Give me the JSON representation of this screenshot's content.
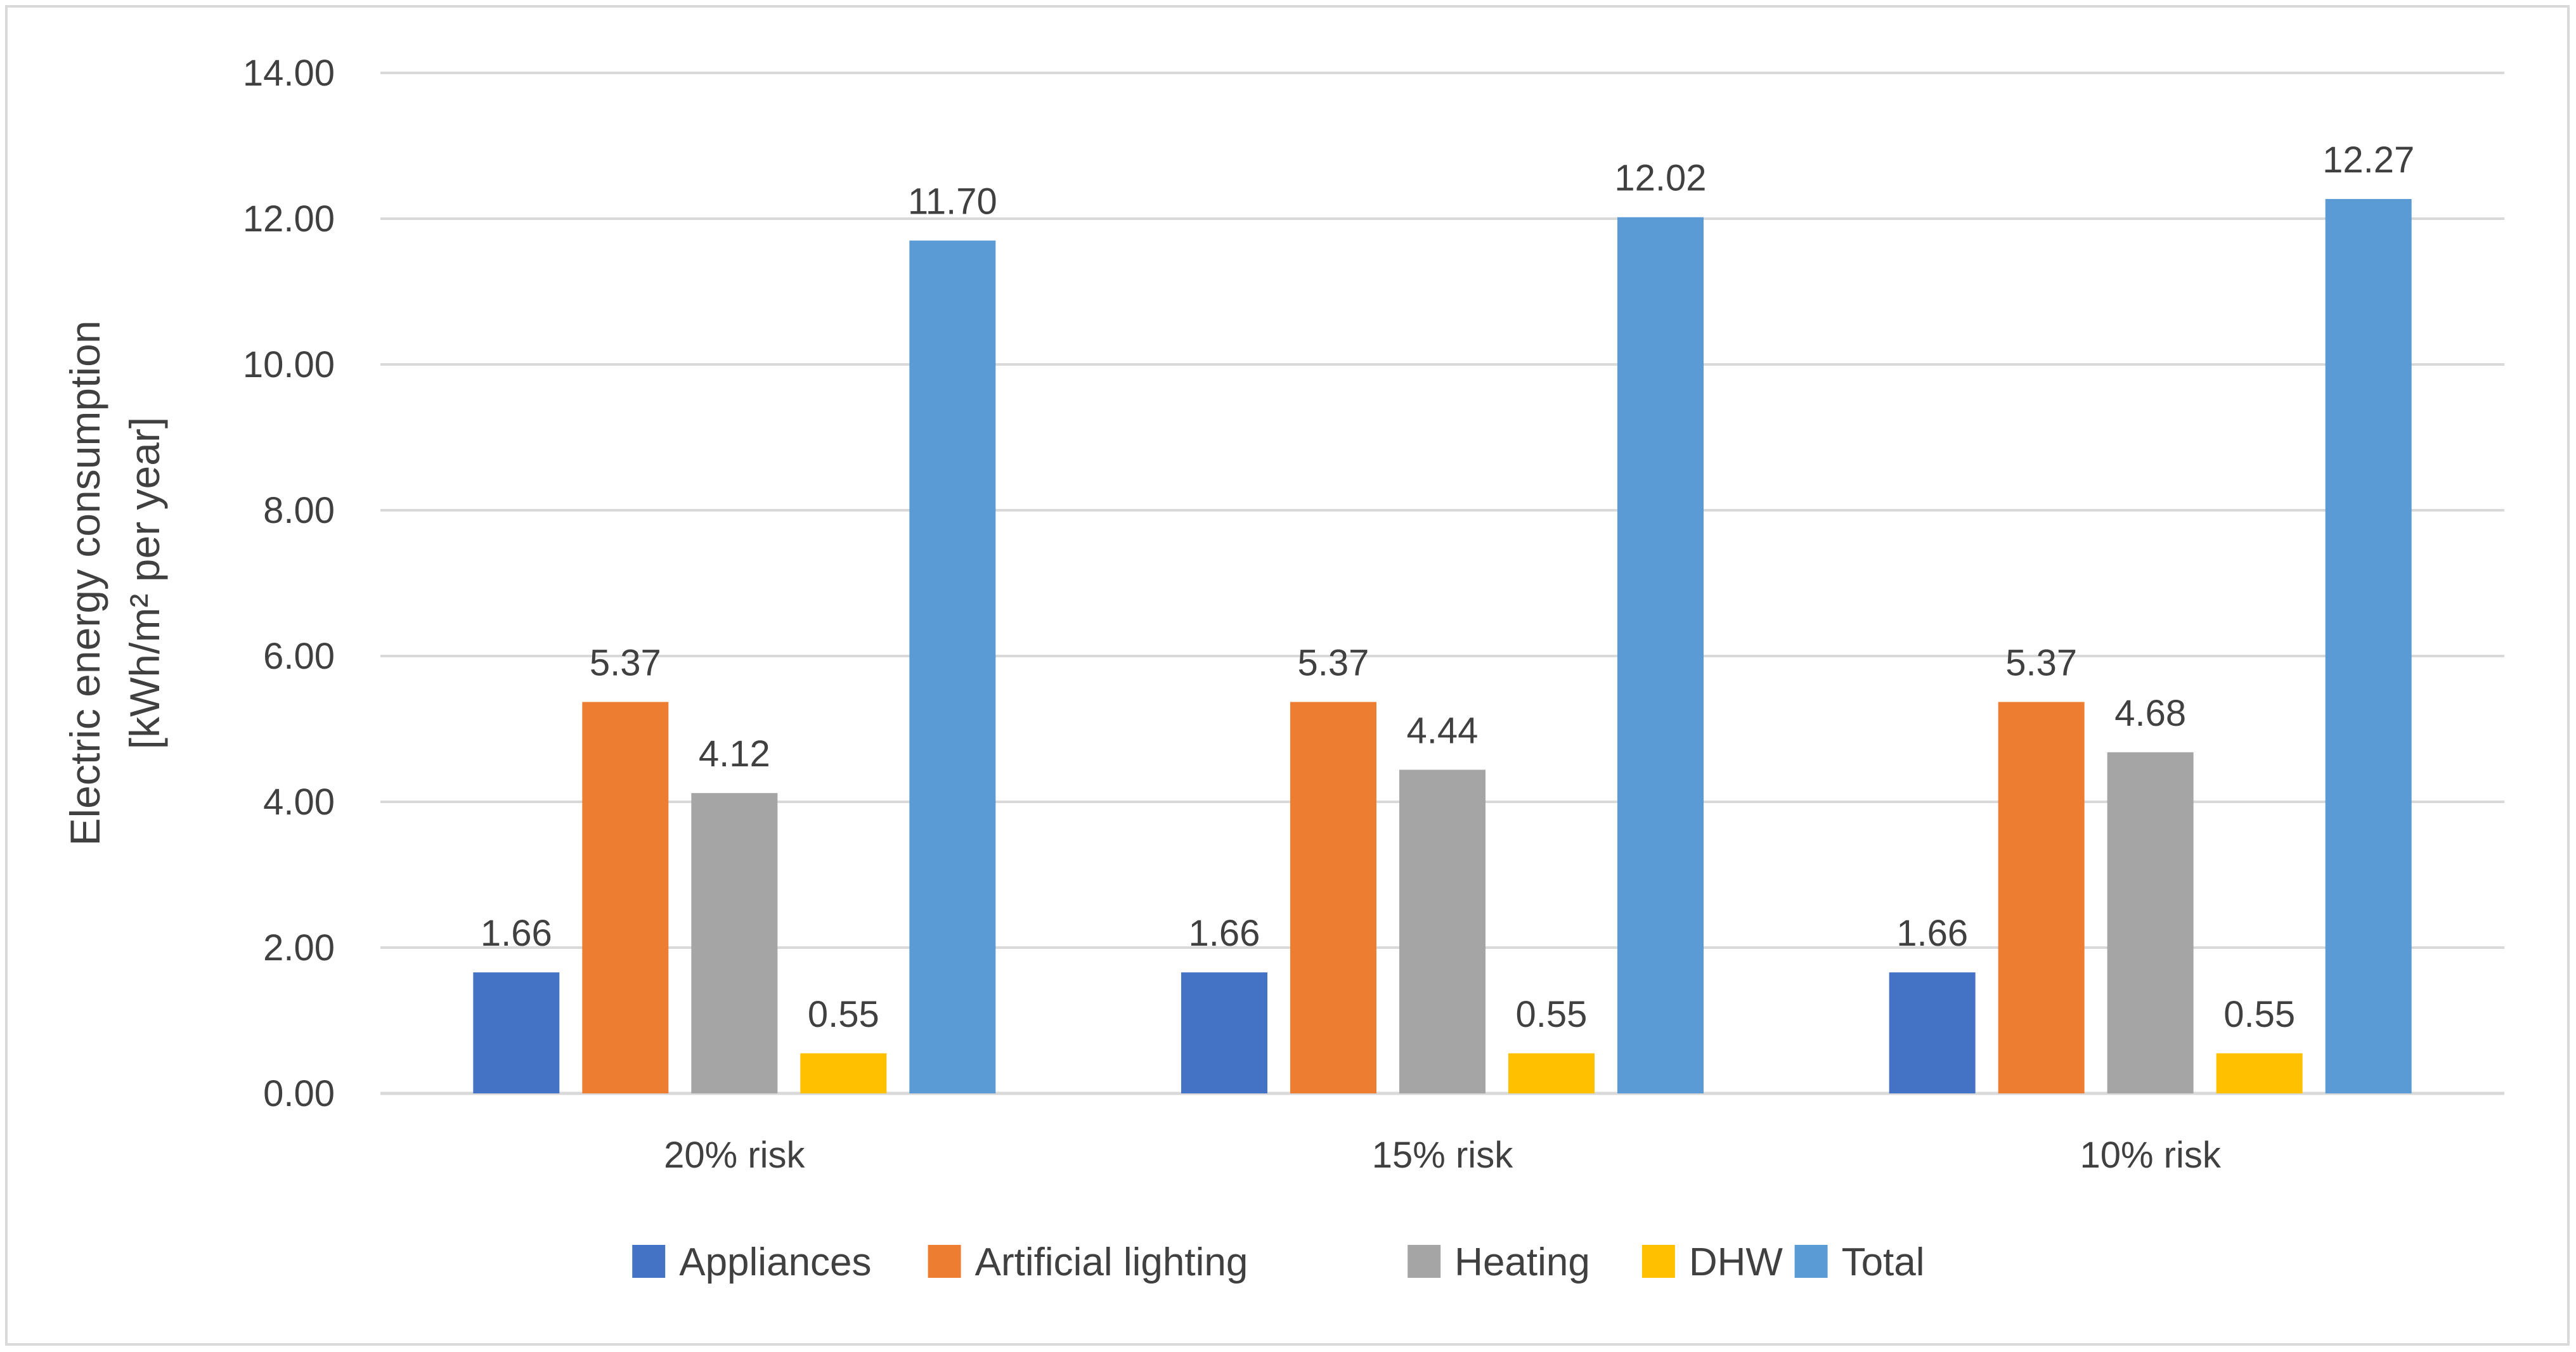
{
  "chart_data": {
    "type": "bar",
    "title": "",
    "xlabel": "",
    "ylabel_line1": "Electric energy consumption",
    "ylabel_line2": "[kWh/m² per year]",
    "ylim": [
      0,
      14
    ],
    "yticks": [
      "0.00",
      "2.00",
      "4.00",
      "6.00",
      "8.00",
      "10.00",
      "12.00",
      "14.00"
    ],
    "ytick_values": [
      0,
      2,
      4,
      6,
      8,
      10,
      12,
      14
    ],
    "grid": true,
    "legend_position": "bottom",
    "categories": [
      "20% risk",
      "15% risk",
      "10% risk"
    ],
    "series": [
      {
        "name": "Appliances",
        "color": "#4472c4",
        "values": [
          1.66,
          1.66,
          1.66
        ],
        "labels": [
          "1.66",
          "1.66",
          "1.66"
        ]
      },
      {
        "name": "Artificial lighting",
        "color": "#ed7d31",
        "values": [
          5.37,
          5.37,
          5.37
        ],
        "labels": [
          "5.37",
          "5.37",
          "5.37"
        ]
      },
      {
        "name": "Heating",
        "color": "#a5a5a5",
        "values": [
          4.12,
          4.44,
          4.68
        ],
        "labels": [
          "4.12",
          "4.44",
          "4.68"
        ]
      },
      {
        "name": "DHW",
        "color": "#ffc000",
        "values": [
          0.55,
          0.55,
          0.55
        ],
        "labels": [
          "0.55",
          "0.55",
          "0.55"
        ]
      },
      {
        "name": "Total",
        "color": "#5b9bd5",
        "values": [
          11.7,
          12.02,
          12.27
        ],
        "labels": [
          "11.70",
          "12.02",
          "12.27"
        ]
      }
    ]
  }
}
